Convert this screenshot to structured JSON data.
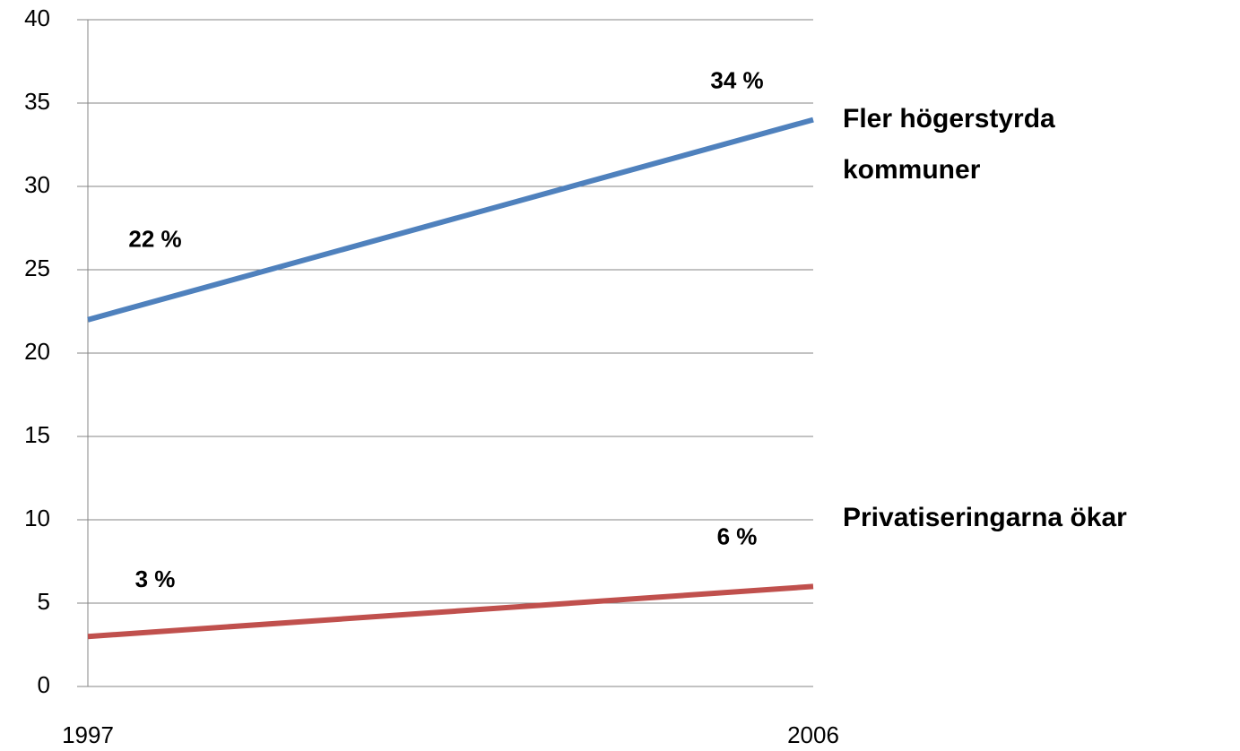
{
  "chart_data": {
    "type": "line",
    "categories": [
      "1997",
      "2006"
    ],
    "series": [
      {
        "name": "Fler högerstyrda kommuner",
        "color": "#4f81bd",
        "values": [
          22,
          34
        ],
        "value_labels": [
          "22 %",
          "34 %"
        ]
      },
      {
        "name": "Privatiseringarna ökar",
        "color": "#c0504d",
        "values": [
          3,
          6
        ],
        "value_labels": [
          "3 %",
          "6 %"
        ]
      }
    ],
    "ylim": [
      0,
      40
    ],
    "yticks": [
      0,
      5,
      10,
      15,
      20,
      25,
      30,
      35,
      40
    ],
    "grid": true
  }
}
